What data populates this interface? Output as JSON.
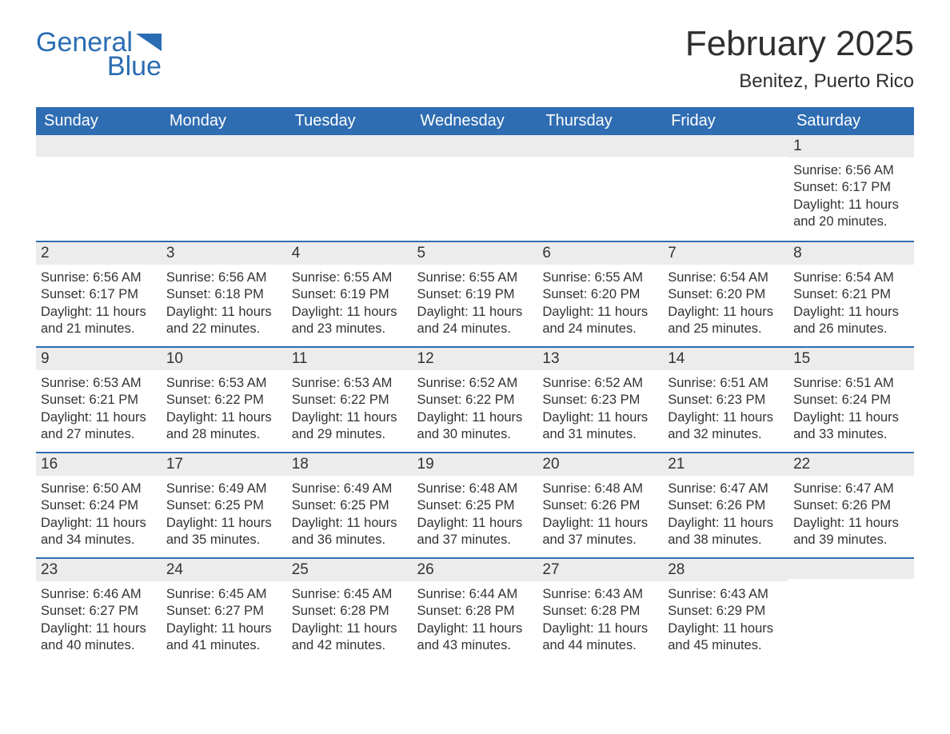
{
  "logo": {
    "word1": "General",
    "word2": "Blue",
    "color": "#2a6db3"
  },
  "title": "February 2025",
  "location": "Benitez, Puerto Rico",
  "colors": {
    "header_bg": "#2f6db3",
    "header_text": "#ffffff",
    "daybar_bg": "#ececec",
    "daybar_border": "#2f6db3",
    "text": "#333333",
    "background": "#ffffff"
  },
  "day_headers": [
    "Sunday",
    "Monday",
    "Tuesday",
    "Wednesday",
    "Thursday",
    "Friday",
    "Saturday"
  ],
  "weeks": [
    [
      {
        "day": "",
        "sunrise": "",
        "sunset": "",
        "daylight": ""
      },
      {
        "day": "",
        "sunrise": "",
        "sunset": "",
        "daylight": ""
      },
      {
        "day": "",
        "sunrise": "",
        "sunset": "",
        "daylight": ""
      },
      {
        "day": "",
        "sunrise": "",
        "sunset": "",
        "daylight": ""
      },
      {
        "day": "",
        "sunrise": "",
        "sunset": "",
        "daylight": ""
      },
      {
        "day": "",
        "sunrise": "",
        "sunset": "",
        "daylight": ""
      },
      {
        "day": "1",
        "sunrise": "Sunrise: 6:56 AM",
        "sunset": "Sunset: 6:17 PM",
        "daylight": "Daylight: 11 hours and 20 minutes."
      }
    ],
    [
      {
        "day": "2",
        "sunrise": "Sunrise: 6:56 AM",
        "sunset": "Sunset: 6:17 PM",
        "daylight": "Daylight: 11 hours and 21 minutes."
      },
      {
        "day": "3",
        "sunrise": "Sunrise: 6:56 AM",
        "sunset": "Sunset: 6:18 PM",
        "daylight": "Daylight: 11 hours and 22 minutes."
      },
      {
        "day": "4",
        "sunrise": "Sunrise: 6:55 AM",
        "sunset": "Sunset: 6:19 PM",
        "daylight": "Daylight: 11 hours and 23 minutes."
      },
      {
        "day": "5",
        "sunrise": "Sunrise: 6:55 AM",
        "sunset": "Sunset: 6:19 PM",
        "daylight": "Daylight: 11 hours and 24 minutes."
      },
      {
        "day": "6",
        "sunrise": "Sunrise: 6:55 AM",
        "sunset": "Sunset: 6:20 PM",
        "daylight": "Daylight: 11 hours and 24 minutes."
      },
      {
        "day": "7",
        "sunrise": "Sunrise: 6:54 AM",
        "sunset": "Sunset: 6:20 PM",
        "daylight": "Daylight: 11 hours and 25 minutes."
      },
      {
        "day": "8",
        "sunrise": "Sunrise: 6:54 AM",
        "sunset": "Sunset: 6:21 PM",
        "daylight": "Daylight: 11 hours and 26 minutes."
      }
    ],
    [
      {
        "day": "9",
        "sunrise": "Sunrise: 6:53 AM",
        "sunset": "Sunset: 6:21 PM",
        "daylight": "Daylight: 11 hours and 27 minutes."
      },
      {
        "day": "10",
        "sunrise": "Sunrise: 6:53 AM",
        "sunset": "Sunset: 6:22 PM",
        "daylight": "Daylight: 11 hours and 28 minutes."
      },
      {
        "day": "11",
        "sunrise": "Sunrise: 6:53 AM",
        "sunset": "Sunset: 6:22 PM",
        "daylight": "Daylight: 11 hours and 29 minutes."
      },
      {
        "day": "12",
        "sunrise": "Sunrise: 6:52 AM",
        "sunset": "Sunset: 6:22 PM",
        "daylight": "Daylight: 11 hours and 30 minutes."
      },
      {
        "day": "13",
        "sunrise": "Sunrise: 6:52 AM",
        "sunset": "Sunset: 6:23 PM",
        "daylight": "Daylight: 11 hours and 31 minutes."
      },
      {
        "day": "14",
        "sunrise": "Sunrise: 6:51 AM",
        "sunset": "Sunset: 6:23 PM",
        "daylight": "Daylight: 11 hours and 32 minutes."
      },
      {
        "day": "15",
        "sunrise": "Sunrise: 6:51 AM",
        "sunset": "Sunset: 6:24 PM",
        "daylight": "Daylight: 11 hours and 33 minutes."
      }
    ],
    [
      {
        "day": "16",
        "sunrise": "Sunrise: 6:50 AM",
        "sunset": "Sunset: 6:24 PM",
        "daylight": "Daylight: 11 hours and 34 minutes."
      },
      {
        "day": "17",
        "sunrise": "Sunrise: 6:49 AM",
        "sunset": "Sunset: 6:25 PM",
        "daylight": "Daylight: 11 hours and 35 minutes."
      },
      {
        "day": "18",
        "sunrise": "Sunrise: 6:49 AM",
        "sunset": "Sunset: 6:25 PM",
        "daylight": "Daylight: 11 hours and 36 minutes."
      },
      {
        "day": "19",
        "sunrise": "Sunrise: 6:48 AM",
        "sunset": "Sunset: 6:25 PM",
        "daylight": "Daylight: 11 hours and 37 minutes."
      },
      {
        "day": "20",
        "sunrise": "Sunrise: 6:48 AM",
        "sunset": "Sunset: 6:26 PM",
        "daylight": "Daylight: 11 hours and 37 minutes."
      },
      {
        "day": "21",
        "sunrise": "Sunrise: 6:47 AM",
        "sunset": "Sunset: 6:26 PM",
        "daylight": "Daylight: 11 hours and 38 minutes."
      },
      {
        "day": "22",
        "sunrise": "Sunrise: 6:47 AM",
        "sunset": "Sunset: 6:26 PM",
        "daylight": "Daylight: 11 hours and 39 minutes."
      }
    ],
    [
      {
        "day": "23",
        "sunrise": "Sunrise: 6:46 AM",
        "sunset": "Sunset: 6:27 PM",
        "daylight": "Daylight: 11 hours and 40 minutes."
      },
      {
        "day": "24",
        "sunrise": "Sunrise: 6:45 AM",
        "sunset": "Sunset: 6:27 PM",
        "daylight": "Daylight: 11 hours and 41 minutes."
      },
      {
        "day": "25",
        "sunrise": "Sunrise: 6:45 AM",
        "sunset": "Sunset: 6:28 PM",
        "daylight": "Daylight: 11 hours and 42 minutes."
      },
      {
        "day": "26",
        "sunrise": "Sunrise: 6:44 AM",
        "sunset": "Sunset: 6:28 PM",
        "daylight": "Daylight: 11 hours and 43 minutes."
      },
      {
        "day": "27",
        "sunrise": "Sunrise: 6:43 AM",
        "sunset": "Sunset: 6:28 PM",
        "daylight": "Daylight: 11 hours and 44 minutes."
      },
      {
        "day": "28",
        "sunrise": "Sunrise: 6:43 AM",
        "sunset": "Sunset: 6:29 PM",
        "daylight": "Daylight: 11 hours and 45 minutes."
      },
      {
        "day": "",
        "sunrise": "",
        "sunset": "",
        "daylight": ""
      }
    ]
  ]
}
